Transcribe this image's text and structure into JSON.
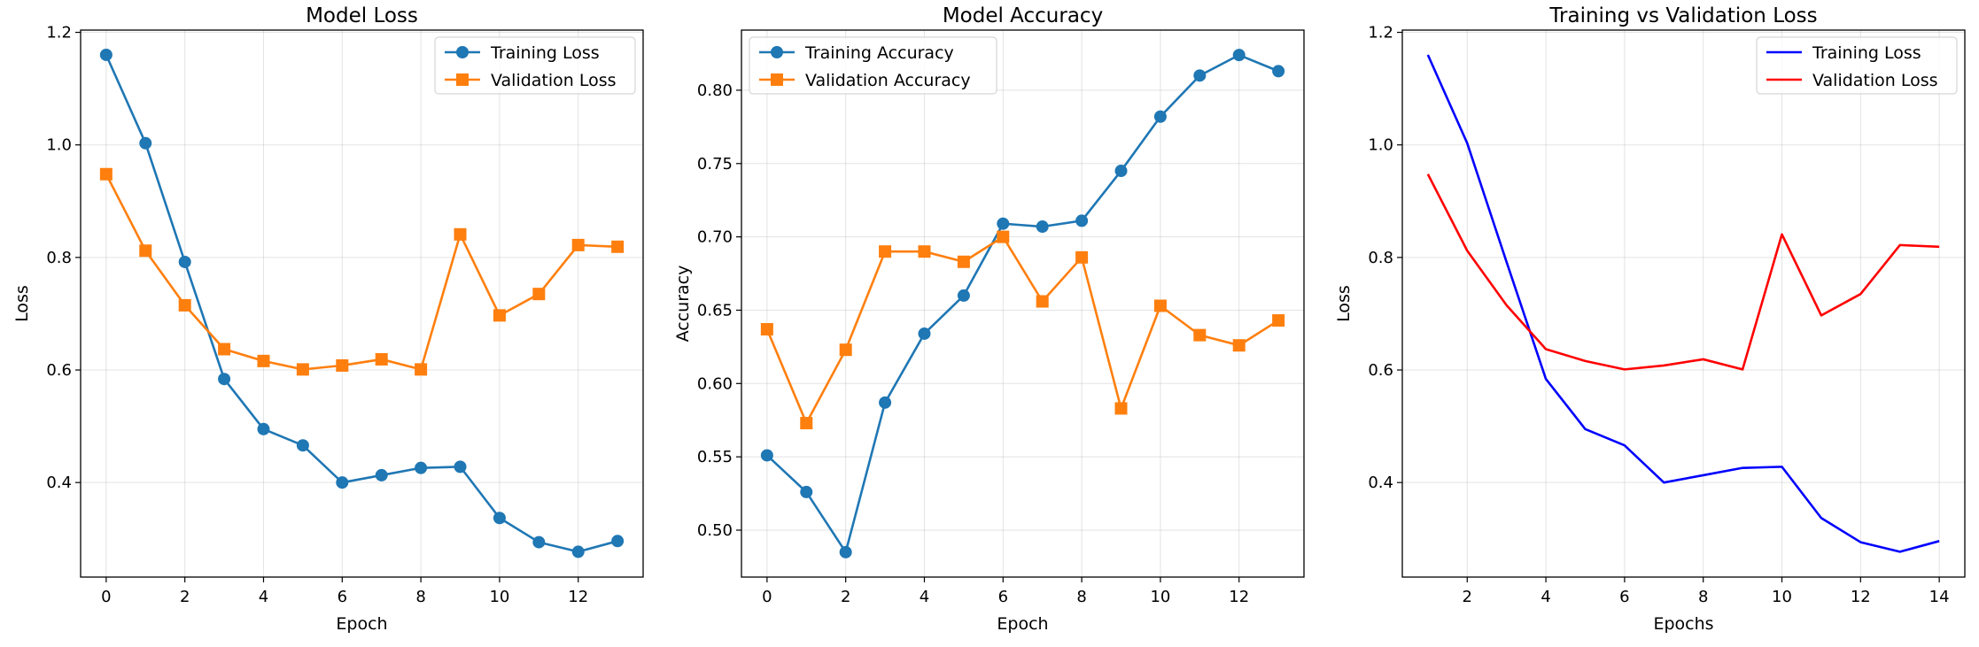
{
  "chart_data": [
    {
      "type": "line",
      "title": "Model Loss",
      "xlabel": "Epoch",
      "ylabel": "Loss",
      "xlim": [
        -0.65,
        13.65
      ],
      "ylim": [
        0.232,
        1.204
      ],
      "xticks": [
        0,
        2,
        4,
        6,
        8,
        10,
        12
      ],
      "yticks": [
        0.4,
        0.6,
        0.8,
        1.0,
        1.2
      ],
      "ytick_labels": [
        "0.4",
        "0.6",
        "0.8",
        "1.0",
        "1.2"
      ],
      "grid": true,
      "legend_position": "top-right",
      "series": [
        {
          "name": "Training Loss",
          "color": "#1f77b4",
          "marker": "circle",
          "x": [
            0,
            1,
            2,
            3,
            4,
            5,
            6,
            7,
            8,
            9,
            10,
            11,
            12,
            13
          ],
          "values": [
            1.16,
            1.003,
            0.792,
            0.584,
            0.495,
            0.466,
            0.4,
            0.413,
            0.426,
            0.428,
            0.337,
            0.294,
            0.277,
            0.296
          ]
        },
        {
          "name": "Validation Loss",
          "color": "#ff7f0e",
          "marker": "square",
          "x": [
            0,
            1,
            2,
            3,
            4,
            5,
            6,
            7,
            8,
            9,
            10,
            11,
            12,
            13
          ],
          "values": [
            0.948,
            0.812,
            0.715,
            0.637,
            0.616,
            0.601,
            0.608,
            0.619,
            0.601,
            0.841,
            0.697,
            0.735,
            0.822,
            0.819
          ]
        }
      ]
    },
    {
      "type": "line",
      "title": "Model Accuracy",
      "xlabel": "Epoch",
      "ylabel": "Accuracy",
      "xlim": [
        -0.65,
        13.65
      ],
      "ylim": [
        0.468,
        0.841
      ],
      "xticks": [
        0,
        2,
        4,
        6,
        8,
        10,
        12
      ],
      "yticks": [
        0.5,
        0.55,
        0.6,
        0.65,
        0.7,
        0.75,
        0.8
      ],
      "ytick_labels": [
        "0.50",
        "0.55",
        "0.60",
        "0.65",
        "0.70",
        "0.75",
        "0.80"
      ],
      "grid": true,
      "legend_position": "top-left",
      "series": [
        {
          "name": "Training Accuracy",
          "color": "#1f77b4",
          "marker": "circle",
          "x": [
            0,
            1,
            2,
            3,
            4,
            5,
            6,
            7,
            8,
            9,
            10,
            11,
            12,
            13
          ],
          "values": [
            0.551,
            0.526,
            0.485,
            0.587,
            0.634,
            0.66,
            0.709,
            0.707,
            0.711,
            0.745,
            0.782,
            0.81,
            0.824,
            0.813
          ]
        },
        {
          "name": "Validation Accuracy",
          "color": "#ff7f0e",
          "marker": "square",
          "x": [
            0,
            1,
            2,
            3,
            4,
            5,
            6,
            7,
            8,
            9,
            10,
            11,
            12,
            13
          ],
          "values": [
            0.637,
            0.573,
            0.623,
            0.69,
            0.69,
            0.683,
            0.7,
            0.656,
            0.686,
            0.583,
            0.653,
            0.633,
            0.626,
            0.643
          ]
        }
      ]
    },
    {
      "type": "line",
      "title": "Training vs Validation Loss",
      "xlabel": "Epochs",
      "ylabel": "Loss",
      "xlim": [
        0.35,
        14.65
      ],
      "ylim": [
        0.232,
        1.204
      ],
      "xticks": [
        2,
        4,
        6,
        8,
        10,
        12,
        14
      ],
      "yticks": [
        0.4,
        0.6,
        0.8,
        1.0,
        1.2
      ],
      "ytick_labels": [
        "0.4",
        "0.6",
        "0.8",
        "1.0",
        "1.2"
      ],
      "grid": true,
      "legend_position": "top-right",
      "series": [
        {
          "name": "Training Loss",
          "color": "#0000ff",
          "marker": "none",
          "x": [
            1,
            2,
            3,
            4,
            5,
            6,
            7,
            8,
            9,
            10,
            11,
            12,
            13,
            14
          ],
          "values": [
            1.16,
            1.003,
            0.792,
            0.584,
            0.495,
            0.466,
            0.4,
            0.413,
            0.426,
            0.428,
            0.337,
            0.294,
            0.277,
            0.296
          ]
        },
        {
          "name": "Validation Loss",
          "color": "#ff0000",
          "marker": "none",
          "x": [
            1,
            2,
            3,
            4,
            5,
            6,
            7,
            8,
            9,
            10,
            11,
            12,
            13,
            14
          ],
          "values": [
            0.948,
            0.812,
            0.715,
            0.637,
            0.616,
            0.601,
            0.608,
            0.619,
            0.601,
            0.841,
            0.697,
            0.735,
            0.822,
            0.819
          ]
        }
      ]
    }
  ]
}
